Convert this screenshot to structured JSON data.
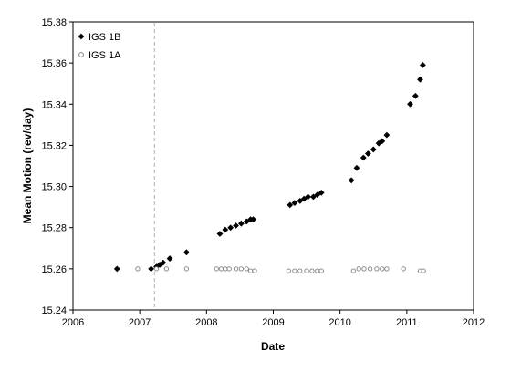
{
  "chart_data": {
    "type": "scatter",
    "title": "",
    "xlabel": "Date",
    "ylabel": "Mean Motion (rev/day)",
    "xlim": [
      2006,
      2012
    ],
    "ylim": [
      15.24,
      15.38
    ],
    "x_ticks": [
      "2006",
      "2007",
      "2008",
      "2009",
      "2010",
      "2011",
      "2012"
    ],
    "y_ticks": [
      "15.24",
      "15.26",
      "15.28",
      "15.30",
      "15.32",
      "15.34",
      "15.36",
      "15.38"
    ],
    "grid": false,
    "legend_position": "top-left",
    "reference_line": {
      "x": 2007.22,
      "style": "dashed",
      "color": "#b0b0b0"
    },
    "series": [
      {
        "name": "IGS 1B",
        "marker": "filled-diamond",
        "color": "#000000",
        "points": [
          [
            2006.66,
            15.26
          ],
          [
            2007.17,
            15.26
          ],
          [
            2007.25,
            15.261
          ],
          [
            2007.3,
            15.262
          ],
          [
            2007.35,
            15.263
          ],
          [
            2007.45,
            15.265
          ],
          [
            2007.7,
            15.268
          ],
          [
            2008.2,
            15.277
          ],
          [
            2008.28,
            15.279
          ],
          [
            2008.36,
            15.28
          ],
          [
            2008.44,
            15.281
          ],
          [
            2008.52,
            15.282
          ],
          [
            2008.6,
            15.283
          ],
          [
            2008.66,
            15.284
          ],
          [
            2008.7,
            15.284
          ],
          [
            2009.25,
            15.291
          ],
          [
            2009.32,
            15.292
          ],
          [
            2009.4,
            15.293
          ],
          [
            2009.46,
            15.294
          ],
          [
            2009.52,
            15.295
          ],
          [
            2009.6,
            15.295
          ],
          [
            2009.66,
            15.296
          ],
          [
            2009.72,
            15.297
          ],
          [
            2010.17,
            15.303
          ],
          [
            2010.25,
            15.309
          ],
          [
            2010.35,
            15.314
          ],
          [
            2010.42,
            15.316
          ],
          [
            2010.5,
            15.318
          ],
          [
            2010.58,
            15.321
          ],
          [
            2010.63,
            15.322
          ],
          [
            2010.7,
            15.325
          ],
          [
            2011.05,
            15.34
          ],
          [
            2011.13,
            15.344
          ],
          [
            2011.2,
            15.352
          ],
          [
            2011.24,
            15.359
          ]
        ]
      },
      {
        "name": "IGS 1A",
        "marker": "open-circle",
        "color": "#808080",
        "points": [
          [
            2006.97,
            15.26
          ],
          [
            2007.25,
            15.26
          ],
          [
            2007.4,
            15.26
          ],
          [
            2007.7,
            15.26
          ],
          [
            2008.15,
            15.26
          ],
          [
            2008.22,
            15.26
          ],
          [
            2008.28,
            15.26
          ],
          [
            2008.34,
            15.26
          ],
          [
            2008.44,
            15.26
          ],
          [
            2008.52,
            15.26
          ],
          [
            2008.6,
            15.26
          ],
          [
            2008.66,
            15.259
          ],
          [
            2008.72,
            15.259
          ],
          [
            2009.23,
            15.259
          ],
          [
            2009.32,
            15.259
          ],
          [
            2009.4,
            15.259
          ],
          [
            2009.5,
            15.259
          ],
          [
            2009.58,
            15.259
          ],
          [
            2009.66,
            15.259
          ],
          [
            2009.72,
            15.259
          ],
          [
            2010.2,
            15.259
          ],
          [
            2010.28,
            15.26
          ],
          [
            2010.36,
            15.26
          ],
          [
            2010.45,
            15.26
          ],
          [
            2010.55,
            15.26
          ],
          [
            2010.63,
            15.26
          ],
          [
            2010.7,
            15.26
          ],
          [
            2010.95,
            15.26
          ],
          [
            2011.2,
            15.259
          ],
          [
            2011.25,
            15.259
          ]
        ]
      }
    ]
  }
}
